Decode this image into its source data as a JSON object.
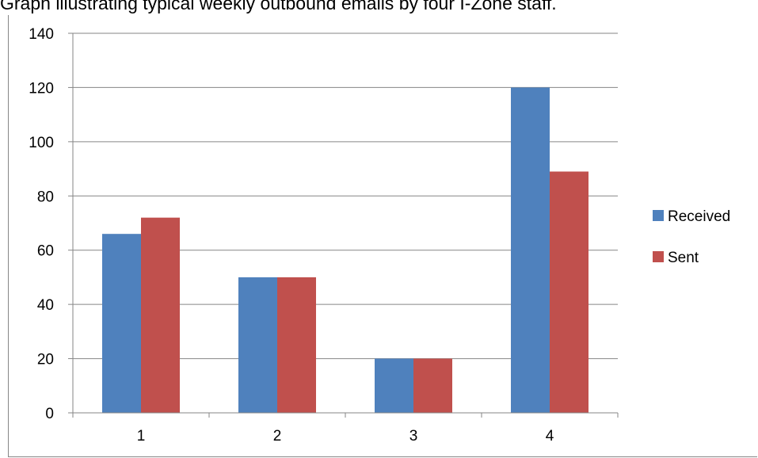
{
  "title": "Graph illustrating typical weekly outbound emails by four I-Zone staff.",
  "colors": {
    "received": "#4F81BD",
    "sent": "#C0504D",
    "grid": "#868686",
    "axis": "#868686"
  },
  "chart_data": {
    "type": "bar",
    "title": "Graph illustrating typical weekly outbound emails by four I-Zone staff.",
    "categories": [
      "1",
      "2",
      "3",
      "4"
    ],
    "series": [
      {
        "name": "Received",
        "values": [
          66,
          50,
          20,
          120
        ]
      },
      {
        "name": "Sent",
        "values": [
          72,
          50,
          20,
          89
        ]
      }
    ],
    "xlabel": "",
    "ylabel": "",
    "ylim": [
      0,
      140
    ],
    "yticks": [
      "0",
      "20",
      "40",
      "60",
      "80",
      "100",
      "120",
      "140"
    ],
    "grid": true,
    "legend": "right"
  }
}
